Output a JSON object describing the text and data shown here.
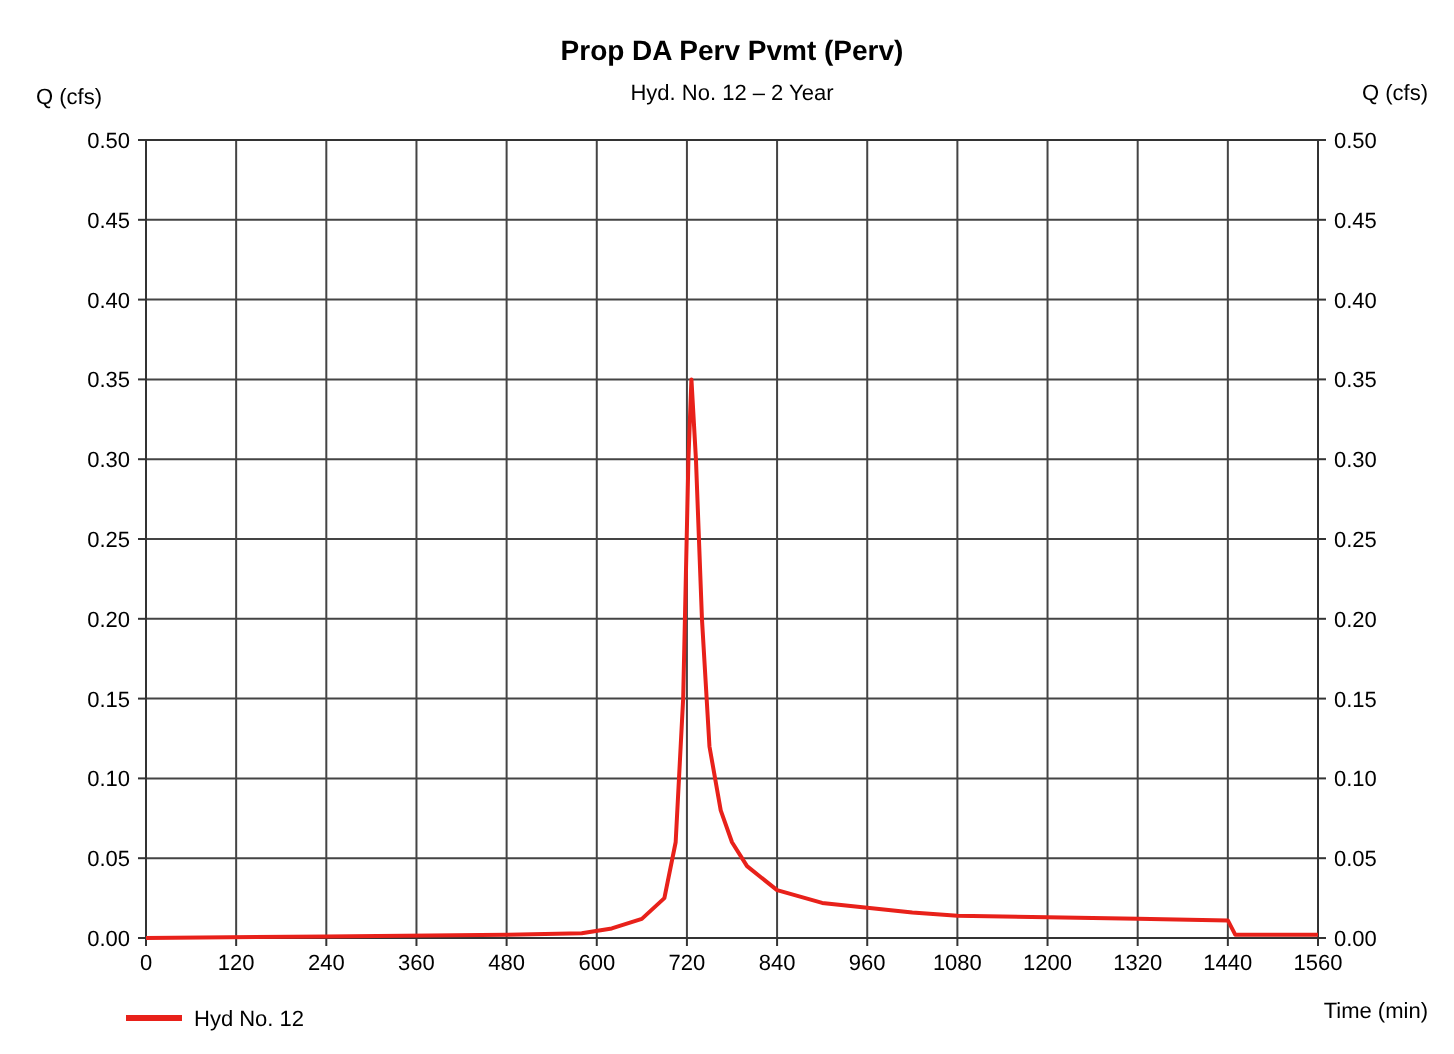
{
  "chart_data": {
    "type": "line",
    "title": "Prop DA Perv Pvmt (Perv)",
    "subtitle": "Hyd. No. 12 – 2 Year",
    "xlabel": "Time (min)",
    "ylabel": "Q (cfs)",
    "y2label": "Q (cfs)",
    "xlim": [
      0,
      1560
    ],
    "xticks": [
      0,
      120,
      240,
      360,
      480,
      600,
      720,
      840,
      960,
      1080,
      1200,
      1320,
      1440,
      1560
    ],
    "ylim": [
      0,
      0.5
    ],
    "yticks": [
      {
        "value": 0,
        "label": "0.00"
      },
      {
        "value": 0.05,
        "label": "0.05"
      },
      {
        "value": 0.1,
        "label": "0.10"
      },
      {
        "value": 0.15,
        "label": "0.15"
      },
      {
        "value": 0.2,
        "label": "0.20"
      },
      {
        "value": 0.25,
        "label": "0.25"
      },
      {
        "value": 0.3,
        "label": "0.30"
      },
      {
        "value": 0.35,
        "label": "0.35"
      },
      {
        "value": 0.4,
        "label": "0.40"
      },
      {
        "value": 0.45,
        "label": "0.45"
      },
      {
        "value": 0.5,
        "label": "0.50"
      }
    ],
    "y2lim": [
      0,
      0.5
    ],
    "y2ticks": [
      {
        "value": 0,
        "label": "0.00"
      },
      {
        "value": 0.05,
        "label": "0.05"
      },
      {
        "value": 0.1,
        "label": "0.10"
      },
      {
        "value": 0.15,
        "label": "0.15"
      },
      {
        "value": 0.2,
        "label": "0.20"
      },
      {
        "value": 0.25,
        "label": "0.25"
      },
      {
        "value": 0.3,
        "label": "0.30"
      },
      {
        "value": 0.35,
        "label": "0.35"
      },
      {
        "value": 0.4,
        "label": "0.40"
      },
      {
        "value": 0.45,
        "label": "0.45"
      },
      {
        "value": 0.5,
        "label": "0.50"
      }
    ],
    "grid": true,
    "legend": "bottom left",
    "marker": "none",
    "line_style": "solid",
    "series": [
      {
        "name": "Hyd No. 12",
        "color": "#e8211a",
        "x": [
          0,
          240,
          480,
          580,
          620,
          660,
          690,
          705,
          715,
          722,
          726,
          732,
          740,
          750,
          765,
          780,
          800,
          840,
          900,
          960,
          1020,
          1080,
          1200,
          1320,
          1440,
          1450,
          1560
        ],
        "values": [
          0,
          0.001,
          0.002,
          0.003,
          0.006,
          0.012,
          0.025,
          0.06,
          0.15,
          0.3,
          0.35,
          0.3,
          0.2,
          0.12,
          0.08,
          0.06,
          0.045,
          0.03,
          0.022,
          0.019,
          0.016,
          0.014,
          0.013,
          0.012,
          0.011,
          0.002,
          0.002
        ]
      }
    ]
  }
}
